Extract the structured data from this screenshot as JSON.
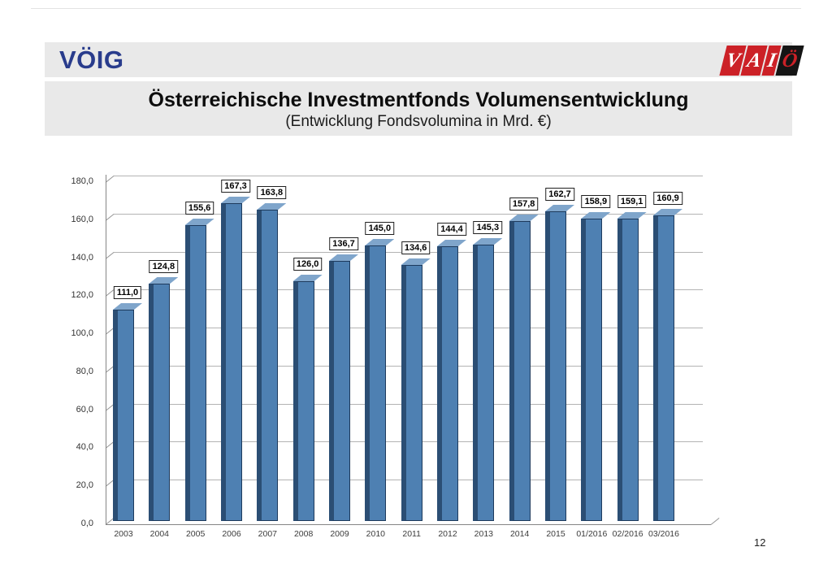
{
  "logos": {
    "voig": {
      "text": "VÖIG",
      "color": "#293c8c"
    },
    "vaio": {
      "tiles": [
        {
          "letter": "V",
          "bg": "#cc2127",
          "fg": "#ffffff",
          "width": 24
        },
        {
          "letter": "A",
          "bg": "#cc2127",
          "fg": "#ffffff",
          "width": 24
        },
        {
          "letter": "I",
          "bg": "#cc2127",
          "fg": "#ffffff",
          "width": 15
        },
        {
          "letter": "Ö",
          "bg": "#151515",
          "fg": "#cc2127",
          "width": 26
        }
      ]
    }
  },
  "header": {
    "title": "Österreichische Investmentfonds Volumensentwicklung",
    "subtitle": "(Entwicklung Fondsvolumina in Mrd. €)"
  },
  "chart_data": {
    "type": "bar",
    "style": "3d-column",
    "title": "Österreichische Investmentfonds Volumensentwicklung",
    "subtitle": "(Entwicklung Fondsvolumina in Mrd. €)",
    "xlabel": "",
    "ylabel": "",
    "unit": "Mrd. €",
    "categories": [
      "2003",
      "2004",
      "2005",
      "2006",
      "2007",
      "2008",
      "2009",
      "2010",
      "2011",
      "2012",
      "2013",
      "2014",
      "2015",
      "01/2016",
      "02/2016",
      "03/2016"
    ],
    "values": [
      111.0,
      124.8,
      155.6,
      167.3,
      163.8,
      126.0,
      136.7,
      145.0,
      134.6,
      144.4,
      145.3,
      157.8,
      162.7,
      158.9,
      159.1,
      160.9
    ],
    "value_labels": [
      "111,0",
      "124,8",
      "155,6",
      "167,3",
      "163,8",
      "126,0",
      "136,7",
      "145,0",
      "134,6",
      "144,4",
      "145,3",
      "157,8",
      "162,7",
      "158,9",
      "159,1",
      "160,9"
    ],
    "ylim": [
      0,
      180
    ],
    "ytick_step": 20,
    "ytick_labels": [
      "0,0",
      "20,0",
      "40,0",
      "60,0",
      "80,0",
      "100,0",
      "120,0",
      "140,0",
      "160,0",
      "180,0"
    ],
    "grid": true,
    "legend": "none",
    "bar_colors": {
      "front": "#4e80b2",
      "side": "#2b4e74",
      "top": "#7fa5cb",
      "outline": "#1d3a5c"
    }
  },
  "footer": {
    "page_number": "12"
  }
}
